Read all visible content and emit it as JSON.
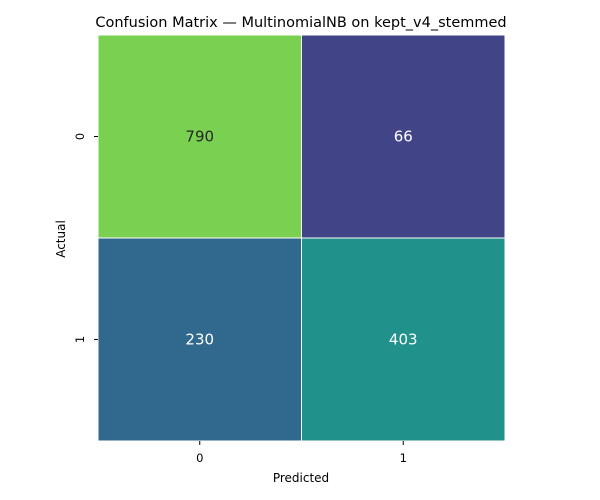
{
  "chart_data": {
    "type": "heatmap",
    "title": "Confusion Matrix — MultinomialNB on kept_v4_stemmed",
    "xlabel": "Predicted",
    "ylabel": "Actual",
    "x_categories": [
      "0",
      "1"
    ],
    "y_categories": [
      "0",
      "1"
    ],
    "values": [
      [
        790,
        66
      ],
      [
        230,
        403
      ]
    ],
    "cell_colors": [
      [
        "#7ad151",
        "#414487"
      ],
      [
        "#31688e",
        "#21918c"
      ]
    ],
    "cell_text_colors": [
      [
        "#262626",
        "#ffffff"
      ],
      [
        "#ffffff",
        "#ffffff"
      ]
    ],
    "colormap": "viridis",
    "grid": false,
    "colorbar": false
  }
}
